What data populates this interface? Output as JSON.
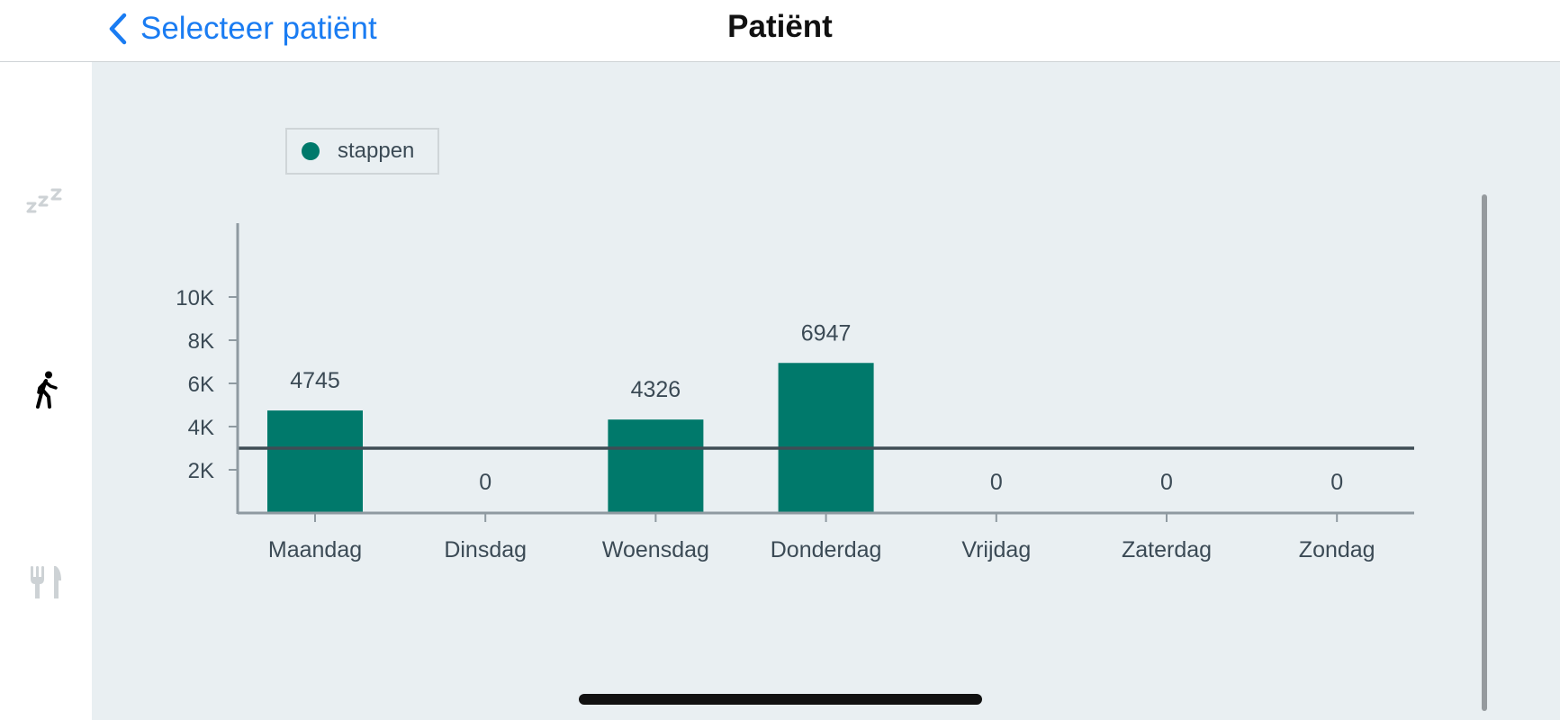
{
  "navbar": {
    "back_label": "Selecteer patiënt",
    "title": "Patiënt"
  },
  "sidebar": {
    "items": [
      {
        "icon": "sleep-icon",
        "active": false
      },
      {
        "icon": "walking-icon",
        "active": true
      },
      {
        "icon": "fork-knife-icon",
        "active": false
      }
    ]
  },
  "colors": {
    "accent": "#1a7cf2",
    "bar": "#00796b",
    "axis": "#8f9aa1",
    "reference_line": "#3f4d55",
    "inactive_icon": "#cdd2d5",
    "active_icon": "#000000",
    "text": "#3b4a55"
  },
  "chart_data": {
    "type": "bar",
    "categories": [
      "Maandag",
      "Dinsdag",
      "Woensdag",
      "Donderdag",
      "Vrijdag",
      "Zaterdag",
      "Zondag"
    ],
    "series": [
      {
        "name": "stappen",
        "values": [
          4745,
          0,
          4326,
          6947,
          0,
          0,
          0
        ]
      }
    ],
    "data_labels": [
      "4745",
      "0",
      "4326",
      "6947",
      "0",
      "0",
      "0"
    ],
    "y_ticks": [
      2000,
      4000,
      6000,
      8000,
      10000
    ],
    "y_tick_labels": [
      "2K",
      "4K",
      "6K",
      "8K",
      "10K"
    ],
    "ylim": [
      0,
      13500
    ],
    "reference_line": 3000,
    "legend": {
      "position": "top-left"
    },
    "grid": false
  }
}
